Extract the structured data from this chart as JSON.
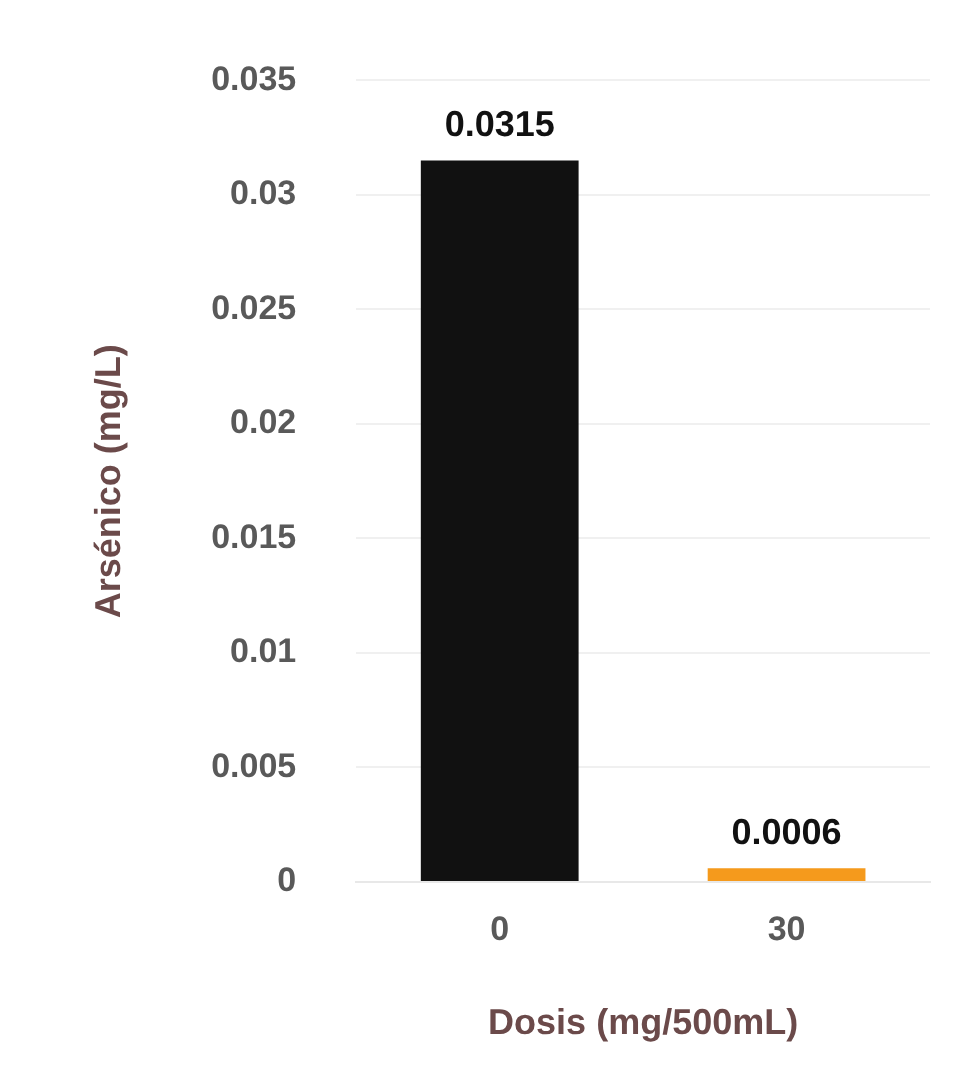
{
  "chart_data": {
    "type": "bar",
    "xlabel": "Dosis (mg/500mL)",
    "ylabel": "Arsénico (mg/L)",
    "categories": [
      "0",
      "30"
    ],
    "values": [
      0.0315,
      0.0006
    ],
    "colors": [
      "#111111",
      "#f59a1c"
    ],
    "ylim": [
      0,
      0.035
    ],
    "yticks": [
      0,
      0.005,
      0.01,
      0.015,
      0.02,
      0.025,
      0.03,
      0.035
    ],
    "grid": "y",
    "data_labels": true,
    "legend": false
  }
}
